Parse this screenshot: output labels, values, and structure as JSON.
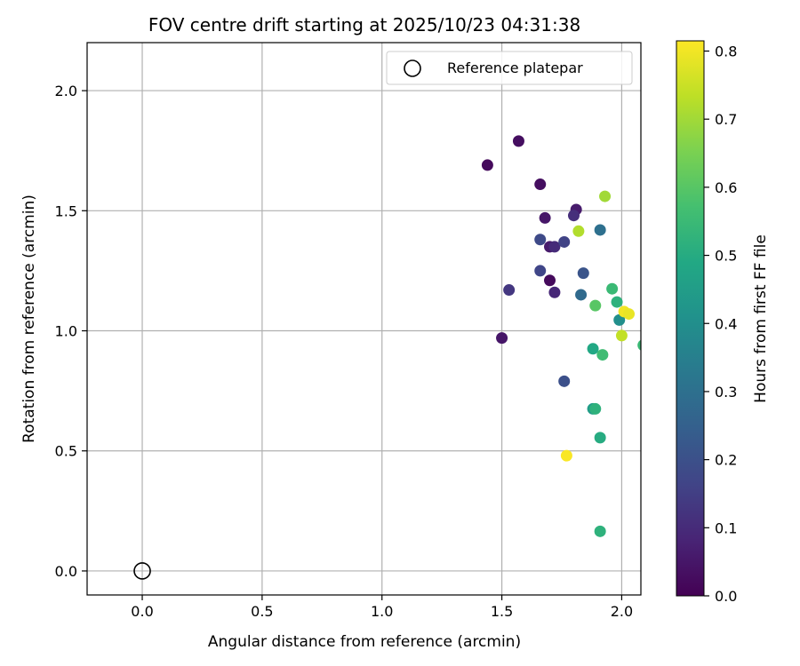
{
  "chart_data": {
    "type": "scatter",
    "title": "FOV centre drift starting at 2025/10/23 04:31:38",
    "xlabel": "Angular distance from reference (arcmin)",
    "ylabel": "Rotation from reference (arcmin)",
    "xlim": [
      -0.23,
      2.08
    ],
    "ylim": [
      -0.1,
      2.2
    ],
    "xticks": [
      0.0,
      0.5,
      1.0,
      1.5,
      2.0
    ],
    "xtick_labels": [
      "0.0",
      "0.5",
      "1.0",
      "1.5",
      "2.0"
    ],
    "yticks": [
      0.0,
      0.5,
      1.0,
      1.5,
      2.0
    ],
    "ytick_labels": [
      "0.0",
      "0.5",
      "1.0",
      "1.5",
      "2.0"
    ],
    "grid": true,
    "legend": {
      "position": "top-right",
      "entries": [
        "Reference platepar"
      ]
    },
    "reference_point": {
      "x": 0.0,
      "y": 0.0,
      "label": "Reference platepar"
    },
    "colorbar": {
      "label": "Hours from first FF file",
      "colormap": "viridis",
      "range": [
        0.0,
        0.815
      ],
      "ticks": [
        0.0,
        0.1,
        0.2,
        0.3,
        0.4,
        0.5,
        0.6,
        0.7,
        0.8
      ],
      "tick_labels": [
        "0.0",
        "0.1",
        "0.2",
        "0.3",
        "0.4",
        "0.5",
        "0.6",
        "0.7",
        "0.8"
      ]
    },
    "points": [
      {
        "x": 1.44,
        "y": 1.69,
        "c": 0.02
      },
      {
        "x": 1.57,
        "y": 1.79,
        "c": 0.03
      },
      {
        "x": 1.66,
        "y": 1.61,
        "c": 0.03
      },
      {
        "x": 1.68,
        "y": 1.47,
        "c": 0.05
      },
      {
        "x": 1.81,
        "y": 1.505,
        "c": 0.06
      },
      {
        "x": 1.8,
        "y": 1.48,
        "c": 0.11
      },
      {
        "x": 1.7,
        "y": 1.35,
        "c": 0.06
      },
      {
        "x": 1.72,
        "y": 1.35,
        "c": 0.1
      },
      {
        "x": 1.66,
        "y": 1.38,
        "c": 0.18
      },
      {
        "x": 1.76,
        "y": 1.37,
        "c": 0.16
      },
      {
        "x": 1.91,
        "y": 1.42,
        "c": 0.3
      },
      {
        "x": 1.66,
        "y": 1.25,
        "c": 0.17
      },
      {
        "x": 1.84,
        "y": 1.24,
        "c": 0.21
      },
      {
        "x": 1.53,
        "y": 1.17,
        "c": 0.13
      },
      {
        "x": 1.7,
        "y": 1.21,
        "c": 0.02
      },
      {
        "x": 1.72,
        "y": 1.16,
        "c": 0.09
      },
      {
        "x": 1.83,
        "y": 1.15,
        "c": 0.28
      },
      {
        "x": 1.5,
        "y": 0.97,
        "c": 0.05
      },
      {
        "x": 1.76,
        "y": 0.79,
        "c": 0.2
      },
      {
        "x": 1.93,
        "y": 1.56,
        "c": 0.7
      },
      {
        "x": 1.82,
        "y": 1.415,
        "c": 0.72
      },
      {
        "x": 1.96,
        "y": 1.175,
        "c": 0.55
      },
      {
        "x": 1.98,
        "y": 1.12,
        "c": 0.52
      },
      {
        "x": 1.89,
        "y": 1.105,
        "c": 0.6
      },
      {
        "x": 1.99,
        "y": 1.045,
        "c": 0.4
      },
      {
        "x": 2.01,
        "y": 1.08,
        "c": 0.8
      },
      {
        "x": 2.03,
        "y": 1.07,
        "c": 0.79
      },
      {
        "x": 2.0,
        "y": 0.98,
        "c": 0.74
      },
      {
        "x": 2.09,
        "y": 0.94,
        "c": 0.55
      },
      {
        "x": 1.88,
        "y": 0.925,
        "c": 0.49
      },
      {
        "x": 1.92,
        "y": 0.9,
        "c": 0.56
      },
      {
        "x": 1.88,
        "y": 0.675,
        "c": 0.45
      },
      {
        "x": 1.89,
        "y": 0.675,
        "c": 0.52
      },
      {
        "x": 1.91,
        "y": 0.555,
        "c": 0.5
      },
      {
        "x": 1.77,
        "y": 0.48,
        "c": 0.81
      },
      {
        "x": 1.91,
        "y": 0.165,
        "c": 0.52
      }
    ]
  }
}
